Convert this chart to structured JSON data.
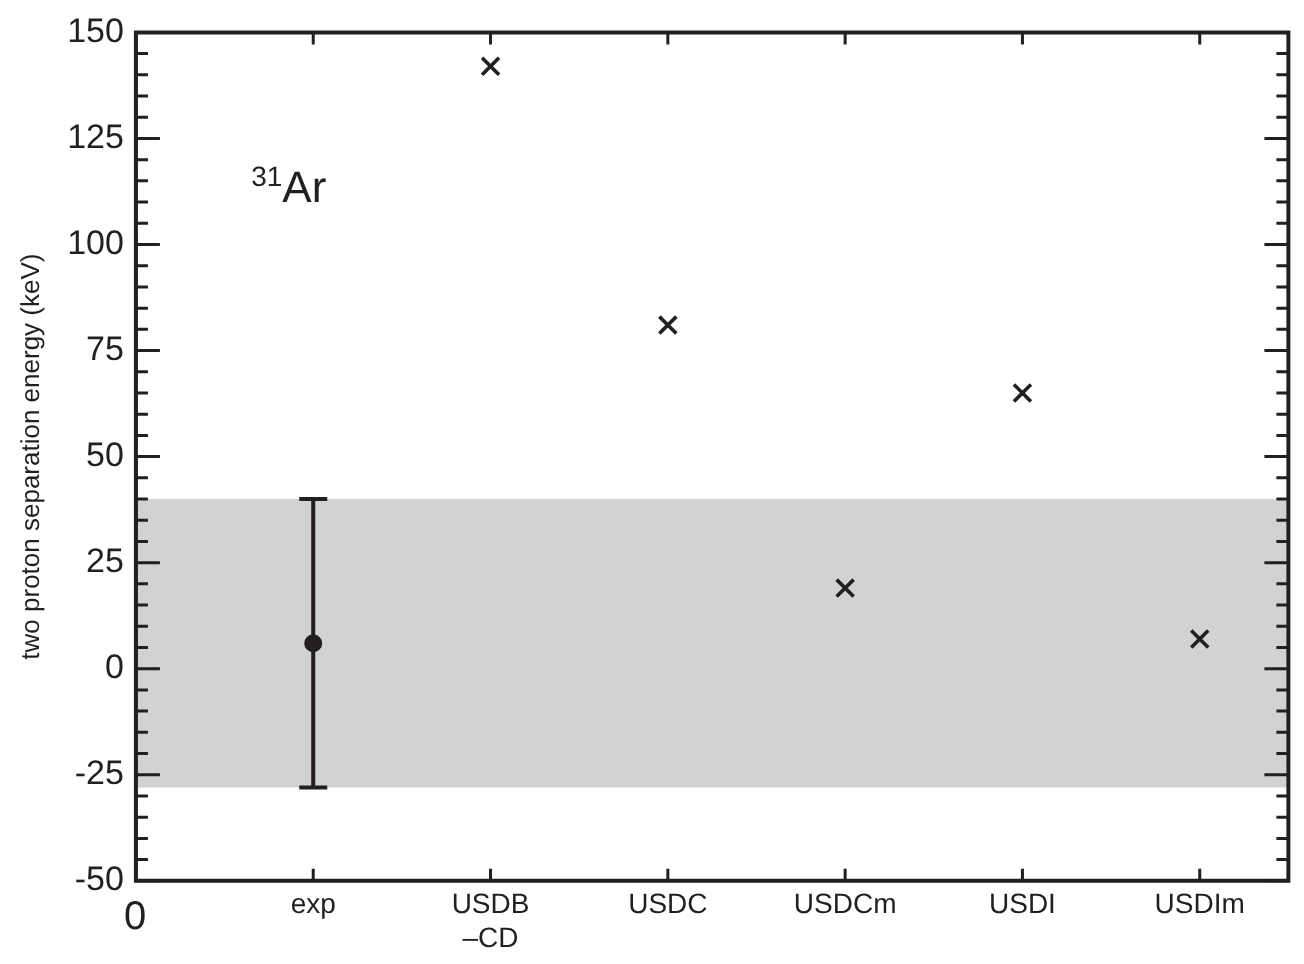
{
  "chart_data": {
    "type": "scatter",
    "ylabel": "two proton separation energy (keV)",
    "annotations": [
      "$^{31}$Ar",
      "0"
    ],
    "categories": [
      "exp",
      "USDB\n–CD",
      "USDC",
      "USDCm",
      "USDI",
      "USDIm"
    ],
    "ylim": [
      -50,
      150
    ],
    "yticks": [
      -50,
      {
        "value": -45,
        "label": null
      },
      {
        "value": -40,
        "label": null
      },
      {
        "value": -35,
        "label": null
      },
      {
        "value": -30,
        "label": null
      },
      -25,
      {
        "value": -20,
        "label": null
      },
      {
        "value": -15,
        "label": null
      },
      {
        "value": -10,
        "label": null
      },
      {
        "value": -5,
        "label": null
      },
      0,
      {
        "value": 5,
        "label": null
      },
      {
        "value": 10,
        "label": null
      },
      {
        "value": 15,
        "label": null
      },
      {
        "value": 20,
        "label": null
      },
      25,
      {
        "value": 30,
        "label": null
      },
      {
        "value": 35,
        "label": null
      },
      {
        "value": 40,
        "label": null
      },
      {
        "value": 45,
        "label": null
      },
      50,
      {
        "value": 55,
        "label": null
      },
      {
        "value": 60,
        "label": null
      },
      {
        "value": 65,
        "label": null
      },
      {
        "value": 70,
        "label": null
      },
      75,
      {
        "value": 80,
        "label": null
      },
      {
        "value": 85,
        "label": null
      },
      {
        "value": 90,
        "label": null
      },
      {
        "value": 95,
        "label": null
      },
      100,
      {
        "value": 105,
        "label": null
      },
      {
        "value": 110,
        "label": null
      },
      {
        "value": 115,
        "label": null
      },
      {
        "value": 120,
        "label": null
      },
      125,
      {
        "value": 130,
        "label": null
      },
      {
        "value": 135,
        "label": null
      },
      {
        "value": 140,
        "label": null
      },
      {
        "value": 145,
        "label": null
      },
      150
    ],
    "bands": [
      {
        "axis": "y",
        "from": -28,
        "to": 40,
        "color": "#d1d2d4"
      }
    ],
    "series": [
      {
        "color": "#231f20",
        "marker": "circle",
        "values": [
          6,
          null,
          null,
          null,
          null,
          null
        ],
        "errors": [
          [
            -28,
            40
          ],
          null,
          null,
          null,
          null,
          null
        ]
      },
      {
        "color": "#231f20",
        "marker": "cross",
        "values": [
          null,
          142,
          81,
          19,
          65,
          7
        ]
      }
    ],
    "grid": false,
    "legend": false
  }
}
